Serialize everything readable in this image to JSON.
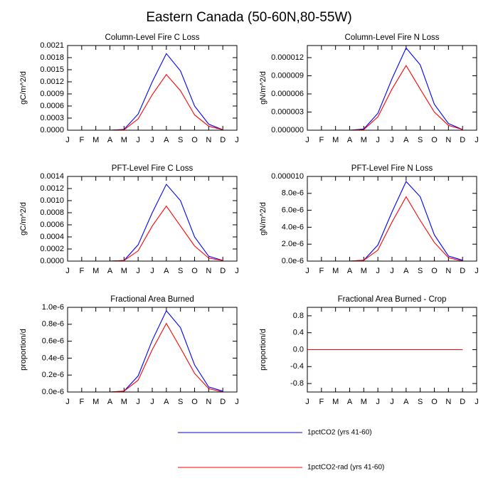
{
  "title": "Eastern Canada (50-60N,80-55W)",
  "legend": [
    {
      "name": "1pctCO2 (yrs 41-60)",
      "color": "#0000ff"
    },
    {
      "name": "1pctCO2-rad (yrs 41-60)",
      "color": "#ff0000"
    }
  ],
  "chart_data": [
    {
      "type": "line",
      "title": "Column-Level Fire C Loss",
      "y_label": "gC/m^2/d",
      "categories": [
        "J",
        "F",
        "M",
        "A",
        "M",
        "J",
        "J",
        "A",
        "S",
        "O",
        "N",
        "D",
        "J"
      ],
      "series": [
        {
          "values": [
            0,
            0,
            0,
            0,
            2e-05,
            0.0004,
            0.0012,
            0.0019,
            0.00147,
            0.0006,
            0.00015,
            1e-05,
            null
          ]
        },
        {
          "values": [
            0,
            0,
            0,
            0,
            1e-05,
            0.00028,
            0.00088,
            0.00138,
            0.00098,
            0.00038,
            0.0001,
            1e-05,
            null
          ]
        }
      ],
      "ylim": [
        0,
        0.0021
      ],
      "yticks": [
        {
          "value": 0,
          "label": "0.0000"
        },
        {
          "value": 0.0003,
          "label": "0.0003"
        },
        {
          "value": 0.0006,
          "label": "0.0006"
        },
        {
          "value": 0.0009,
          "label": "0.0009"
        },
        {
          "value": 0.0012,
          "label": "0.0012"
        },
        {
          "value": 0.0015,
          "label": "0.0015"
        },
        {
          "value": 0.0018,
          "label": "0.0018"
        },
        {
          "value": 0.0021,
          "label": "0.0021"
        }
      ]
    },
    {
      "type": "line",
      "title": "Column-Level Fire N Loss",
      "y_label": "gN/m^2/d",
      "categories": [
        "J",
        "F",
        "M",
        "A",
        "M",
        "J",
        "J",
        "A",
        "S",
        "O",
        "N",
        "D",
        "J"
      ],
      "series": [
        {
          "values": [
            0,
            0,
            0,
            0,
            2e-07,
            2.8e-06,
            8.5e-06,
            1.36e-05,
            1.08e-05,
            4.3e-06,
            1.1e-06,
            1e-07,
            null
          ]
        },
        {
          "values": [
            0,
            0,
            0,
            0,
            1e-07,
            2.2e-06,
            6.8e-06,
            1.07e-05,
            6.8e-06,
            3e-06,
            8e-07,
            1e-07,
            null
          ]
        }
      ],
      "ylim": [
        0,
        1.4e-05
      ],
      "yticks": [
        {
          "value": 0,
          "label": "0.000000"
        },
        {
          "value": 3e-06,
          "label": "0.000003"
        },
        {
          "value": 6e-06,
          "label": "0.000006"
        },
        {
          "value": 9e-06,
          "label": "0.000009"
        },
        {
          "value": 1.2e-05,
          "label": "0.000012"
        }
      ]
    },
    {
      "type": "line",
      "title": "PFT-Level Fire C Loss",
      "y_label": "gC/m^2/d",
      "categories": [
        "J",
        "F",
        "M",
        "A",
        "M",
        "J",
        "J",
        "A",
        "S",
        "O",
        "N",
        "D",
        "J"
      ],
      "series": [
        {
          "values": [
            0,
            0,
            0,
            0,
            1e-05,
            0.00027,
            0.0008,
            0.00127,
            0.001,
            0.0004,
            8e-05,
            1e-05,
            null
          ]
        },
        {
          "values": [
            0,
            0,
            0,
            0,
            1e-05,
            0.00017,
            0.00058,
            0.00091,
            0.00058,
            0.00025,
            5e-05,
            1e-05,
            null
          ]
        }
      ],
      "ylim": [
        0,
        0.0014
      ],
      "yticks": [
        {
          "value": 0,
          "label": "0.0000"
        },
        {
          "value": 0.0002,
          "label": "0.0002"
        },
        {
          "value": 0.0004,
          "label": "0.0004"
        },
        {
          "value": 0.0006,
          "label": "0.0006"
        },
        {
          "value": 0.0008,
          "label": "0.0008"
        },
        {
          "value": 0.001,
          "label": "0.0010"
        },
        {
          "value": 0.0012,
          "label": "0.0012"
        },
        {
          "value": 0.0014,
          "label": "0.0014"
        }
      ]
    },
    {
      "type": "line",
      "title": "PFT-Level Fire N Loss",
      "y_label": "gN/m^2/d",
      "categories": [
        "J",
        "F",
        "M",
        "A",
        "M",
        "J",
        "J",
        "A",
        "S",
        "O",
        "N",
        "D",
        "J"
      ],
      "series": [
        {
          "values": [
            0,
            0,
            0,
            0,
            1e-07,
            1.9e-06,
            5.8e-06,
            9.4e-06,
            7.6e-06,
            3.1e-06,
            6e-07,
            1e-07,
            null
          ]
        },
        {
          "values": [
            0,
            0,
            0,
            0,
            1e-07,
            1.3e-06,
            4.6e-06,
            7.6e-06,
            4.8e-06,
            2.2e-06,
            4e-07,
            0,
            null
          ]
        }
      ],
      "ylim": [
        0,
        1e-05
      ],
      "yticks": [
        {
          "value": 0,
          "label": "0.0e-6"
        },
        {
          "value": 2e-06,
          "label": "2.0e-6"
        },
        {
          "value": 4e-06,
          "label": "4.0e-6"
        },
        {
          "value": 6e-06,
          "label": "6.0e-6"
        },
        {
          "value": 8e-06,
          "label": "8.0e-6"
        },
        {
          "value": 1e-05,
          "label": "0.000010"
        }
      ]
    },
    {
      "type": "line",
      "title": "Fractional Area Burned",
      "y_label": "proportion/d",
      "categories": [
        "J",
        "F",
        "M",
        "A",
        "M",
        "J",
        "J",
        "A",
        "S",
        "O",
        "N",
        "D",
        "J"
      ],
      "series": [
        {
          "values": [
            0,
            0,
            0,
            0,
            1e-08,
            1.9e-07,
            6.1e-07,
            9.6e-07,
            7.6e-07,
            3.2e-07,
            6e-08,
            1e-08,
            null
          ]
        },
        {
          "values": [
            0,
            0,
            0,
            0,
            1e-08,
            1.4e-07,
            5e-07,
            8.1e-07,
            5.2e-07,
            2.2e-07,
            4e-08,
            0,
            null
          ]
        }
      ],
      "ylim": [
        0,
        1e-06
      ],
      "yticks": [
        {
          "value": 0,
          "label": "0.0e-6"
        },
        {
          "value": 2e-07,
          "label": "0.2e-6"
        },
        {
          "value": 4e-07,
          "label": "0.4e-6"
        },
        {
          "value": 6e-07,
          "label": "0.6e-6"
        },
        {
          "value": 8e-07,
          "label": "0.8e-6"
        },
        {
          "value": 1e-06,
          "label": "1.0e-6"
        }
      ]
    },
    {
      "type": "line",
      "title": "Fractional Area Burned - Crop",
      "y_label": "proportion/d",
      "categories": [
        "J",
        "F",
        "M",
        "A",
        "M",
        "J",
        "J",
        "A",
        "S",
        "O",
        "N",
        "D",
        "J"
      ],
      "series": [
        {
          "values": [
            0,
            0,
            0,
            0,
            0,
            0,
            0,
            0,
            0,
            0,
            0,
            0,
            null
          ]
        },
        {
          "values": [
            0,
            0,
            0,
            0,
            0,
            0,
            0,
            0,
            0,
            0,
            0,
            0,
            null
          ]
        }
      ],
      "ylim": [
        -1,
        1
      ],
      "yticks": [
        -0.8,
        -0.4,
        {
          "value": 0,
          "label": "0.0"
        },
        0.4,
        0.8
      ]
    }
  ]
}
